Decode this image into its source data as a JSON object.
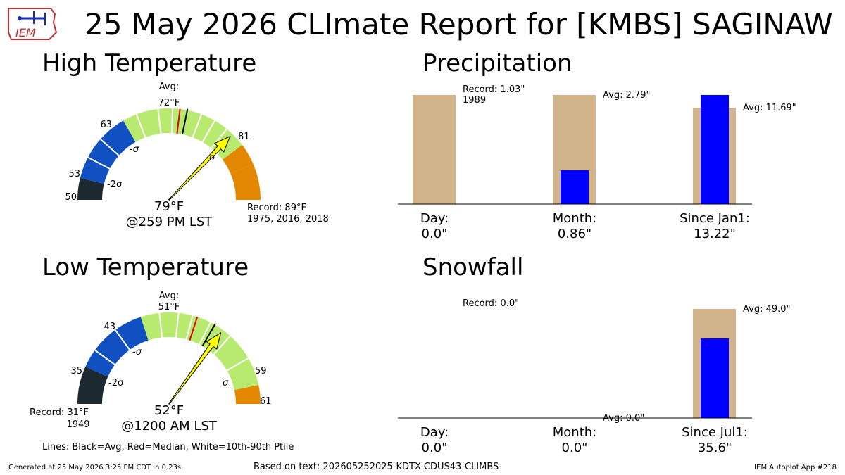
{
  "header": {
    "title": "25 May 2026 CLImate Report for [KMBS] SAGINAW",
    "logo_text": "IEM"
  },
  "high_temp": {
    "title": "High Temperature",
    "avg_label": "Avg:",
    "avg_value": "72°F",
    "value_label": "79°F",
    "time_label": "@259 PM LST",
    "record_label": "Record: 89°F",
    "record_years": "1975, 2016, 2018",
    "ticks": [
      "50",
      "53",
      "63",
      "81"
    ],
    "sigma_labels": [
      "-2σ",
      "-σ",
      "σ"
    ],
    "gauge": {
      "min": 50,
      "max": 89,
      "avg": 72,
      "median": 71,
      "observed": 79,
      "band_edges": [
        50,
        53,
        63,
        81,
        84,
        89
      ],
      "band_colors": [
        "#1c2930",
        "#1050c0",
        "#b8ea70",
        "#e38600",
        "#e38600"
      ],
      "white_lines": [
        56,
        59,
        65,
        68,
        70,
        74,
        76,
        78
      ]
    }
  },
  "low_temp": {
    "title": "Low Temperature",
    "avg_label": "Avg:",
    "avg_value": "51°F",
    "value_label": "52°F",
    "time_label": "@1200 AM LST",
    "record_label": "Record: 31°F",
    "record_years": "1949",
    "ticks": [
      "35",
      "43",
      "59",
      "61"
    ],
    "sigma_labels": [
      "-2σ",
      "-σ",
      "σ"
    ],
    "gauge": {
      "min": 31,
      "max": 61,
      "avg": 51,
      "median": 49,
      "observed": 52,
      "band_edges": [
        31,
        35,
        43,
        59,
        61
      ],
      "band_colors": [
        "#1c2930",
        "#1050c0",
        "#b8ea70",
        "#e38600"
      ],
      "white_lines": [
        37,
        40,
        45,
        47,
        48.5,
        50.5,
        53,
        56
      ]
    }
  },
  "precip": {
    "title": "Precipitation",
    "categories": [
      "Day:",
      "Month:",
      "Since Jan1:"
    ],
    "values": [
      "0.0\"",
      "0.86\"",
      "13.22\""
    ],
    "annotations": [
      "Record: 1.03\"\n1989",
      "Avg: 2.79\"",
      "Avg: 11.69\""
    ],
    "chart_data": {
      "type": "bar",
      "categories": [
        "Day",
        "Month",
        "Since Jan1"
      ],
      "series": [
        {
          "name": "Record / Avg",
          "values": [
            1.03,
            2.79,
            11.69
          ]
        },
        {
          "name": "Observed",
          "values": [
            0.0,
            0.86,
            13.22
          ]
        }
      ],
      "colors": [
        "#d2b48c",
        "#0000ff"
      ]
    }
  },
  "snow": {
    "title": "Snowfall",
    "categories": [
      "Day:",
      "Month:",
      "Since Jul1:"
    ],
    "values": [
      "0.0\"",
      "0.0\"",
      "35.6\""
    ],
    "annotations": [
      "Record: 0.0\"",
      "Avg: 0.0\"",
      "Avg: 49.0\""
    ],
    "chart_data": {
      "type": "bar",
      "categories": [
        "Day",
        "Month",
        "Since Jul1"
      ],
      "series": [
        {
          "name": "Record / Avg",
          "values": [
            0.0,
            0.0,
            49.0
          ]
        },
        {
          "name": "Observed",
          "values": [
            0.0,
            0.0,
            35.6
          ]
        }
      ],
      "colors": [
        "#d2b48c",
        "#0000ff"
      ]
    }
  },
  "footer": {
    "lines_note": "Lines: Black=Avg, Red=Median, White=10th-90th Ptile",
    "generated": "Generated at 25 May 2026 3:25 PM CDT in 0.23s",
    "based_on": "Based on text: 202605252025-KDTX-CDUS43-CLIMBS",
    "app": "IEM Autoplot App #218"
  }
}
